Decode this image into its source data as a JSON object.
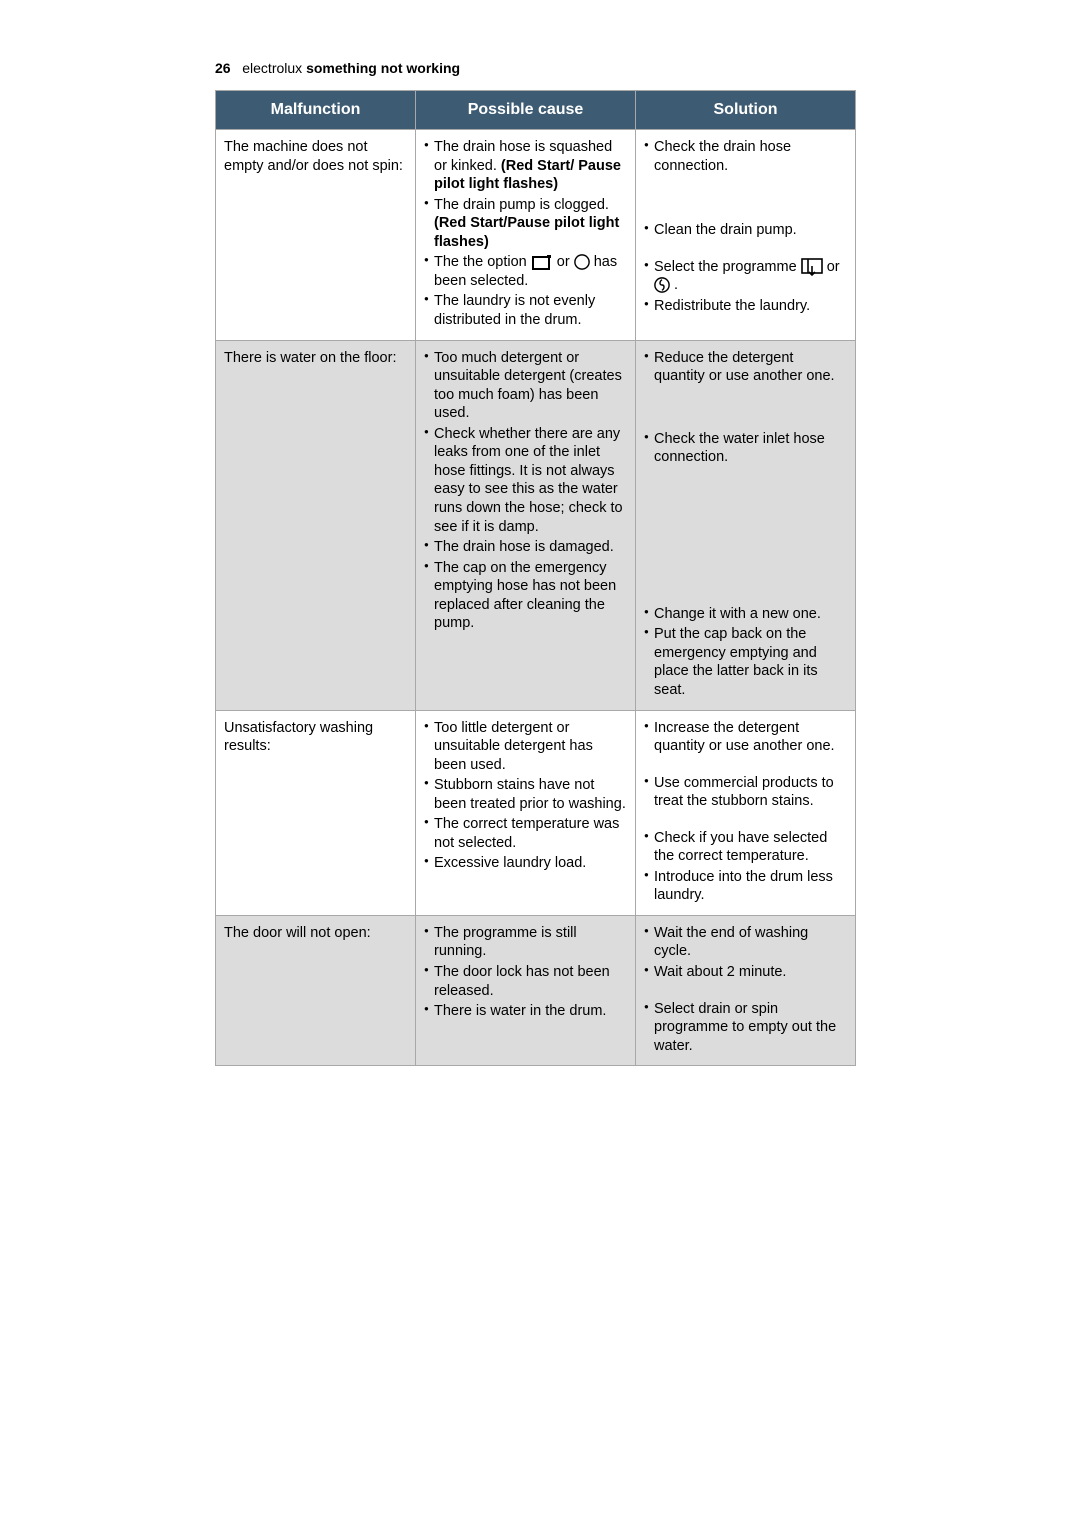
{
  "header": {
    "page_number": "26",
    "brand": "electrolux",
    "section": "something not working"
  },
  "columns": {
    "malfunction": "Malfunction",
    "cause": "Possible cause",
    "solution": "Solution"
  },
  "colors": {
    "header_bg": "#3d5c73",
    "header_text": "#ffffff",
    "alt_row_bg": "#dcdcdc",
    "border": "#a8a8a8",
    "page_bg": "#ffffff"
  },
  "rows": [
    {
      "alt": false,
      "malfunction": "The machine does not empty and/or does not spin:",
      "causes": [
        {
          "pre": "The drain hose is squashed or kinked. ",
          "bold": "(Red Start/ Pause pilot light flashes)"
        },
        {
          "pre": "The drain pump is clogged. ",
          "bold": "(Red Start/Pause pilot light flashes)"
        },
        {
          "pre": "The the option ",
          "icons": [
            "rect",
            "clockmoon"
          ],
          "post": " has been selected."
        },
        {
          "pre": "The laundry is not evenly distributed in the drum."
        }
      ],
      "solutions": [
        {
          "text": "Check the drain hose connection.",
          "spacer_after": 46
        },
        {
          "text": "Clean the drain pump.",
          "spacer_after": 18
        },
        {
          "pre": "Select the programme ",
          "icons": [
            "drain"
          ],
          "post": " or ",
          "icons2": [
            "spin"
          ],
          "tail": " ."
        },
        {
          "text": "Redistribute the laundry."
        }
      ]
    },
    {
      "alt": true,
      "malfunction": "There is water on the floor:",
      "causes": [
        {
          "pre": "Too much detergent or unsuitable detergent (creates too much foam) has been used."
        },
        {
          "pre": "Check whether there are any leaks from one of the inlet hose fittings. It is not always easy to see this as the water runs down the hose; check to see if it is damp."
        },
        {
          "pre": "The drain hose is damaged."
        },
        {
          "pre": "The cap on the emergency emptying hose has not been replaced after cleaning the pump."
        }
      ],
      "solutions": [
        {
          "text": "Reduce the detergent quantity or use another one.",
          "group_after": 44
        },
        {
          "text": "Check the water inlet hose connection.",
          "group_after": 138
        },
        {
          "text": "Change it with a new one."
        },
        {
          "text": "Put the cap back on the emergency emptying and place the latter back in its seat."
        }
      ]
    },
    {
      "alt": false,
      "malfunction": "Unsatisfactory washing results:",
      "causes": [
        {
          "pre": "Too little detergent or unsuitable detergent has been used."
        },
        {
          "pre": "Stubborn stains have not been treated prior to washing."
        },
        {
          "pre": "The correct temperature was not selected."
        },
        {
          "pre": "Excessive laundry load."
        }
      ],
      "solutions": [
        {
          "text": "Increase the detergent quantity or use another one.",
          "group_after": 18
        },
        {
          "text": "Use commercial products to treat the stubborn stains.",
          "group_after": 18
        },
        {
          "text": "Check if you have selected the correct temperature."
        },
        {
          "text": "Introduce into the drum less laundry."
        }
      ]
    },
    {
      "alt": true,
      "malfunction": "The door will not open:",
      "causes": [
        {
          "pre": "The programme is still running."
        },
        {
          "pre": "The door lock has not been released."
        },
        {
          "pre": "There is water in the drum."
        }
      ],
      "solutions": [
        {
          "text": "Wait the end of washing cycle."
        },
        {
          "text": "Wait about 2 minute.",
          "group_after": 18
        },
        {
          "text": "Select drain or spin programme to empty out the water."
        }
      ]
    }
  ]
}
